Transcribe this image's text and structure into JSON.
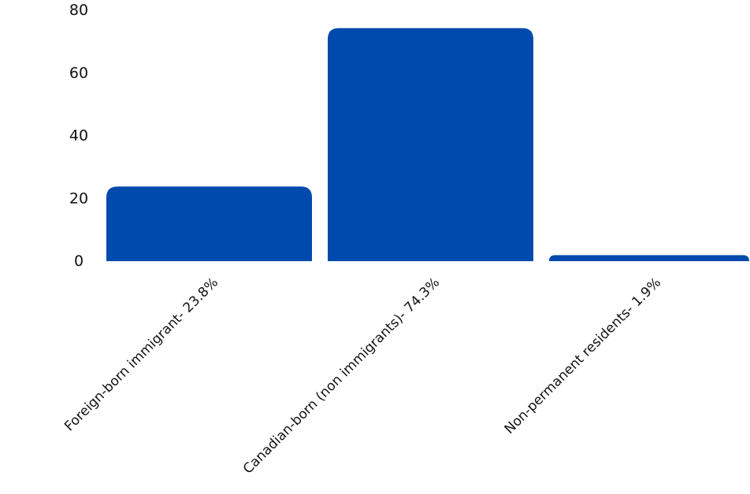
{
  "chart_data": {
    "type": "bar",
    "title": "",
    "xlabel": "",
    "ylabel": "",
    "categories": [
      "Foreign-born immigrant- 23.8%",
      "Canadian-born (non immigrants)- 74.3%",
      "Non-permanent residents- 1.9%"
    ],
    "values": [
      23.8,
      74.3,
      1.9
    ],
    "ylim": [
      0,
      80
    ],
    "yticks": [
      "0",
      "20",
      "40",
      "60",
      "80"
    ],
    "grid": false,
    "legend": "none",
    "bar_color": "#004aad"
  }
}
